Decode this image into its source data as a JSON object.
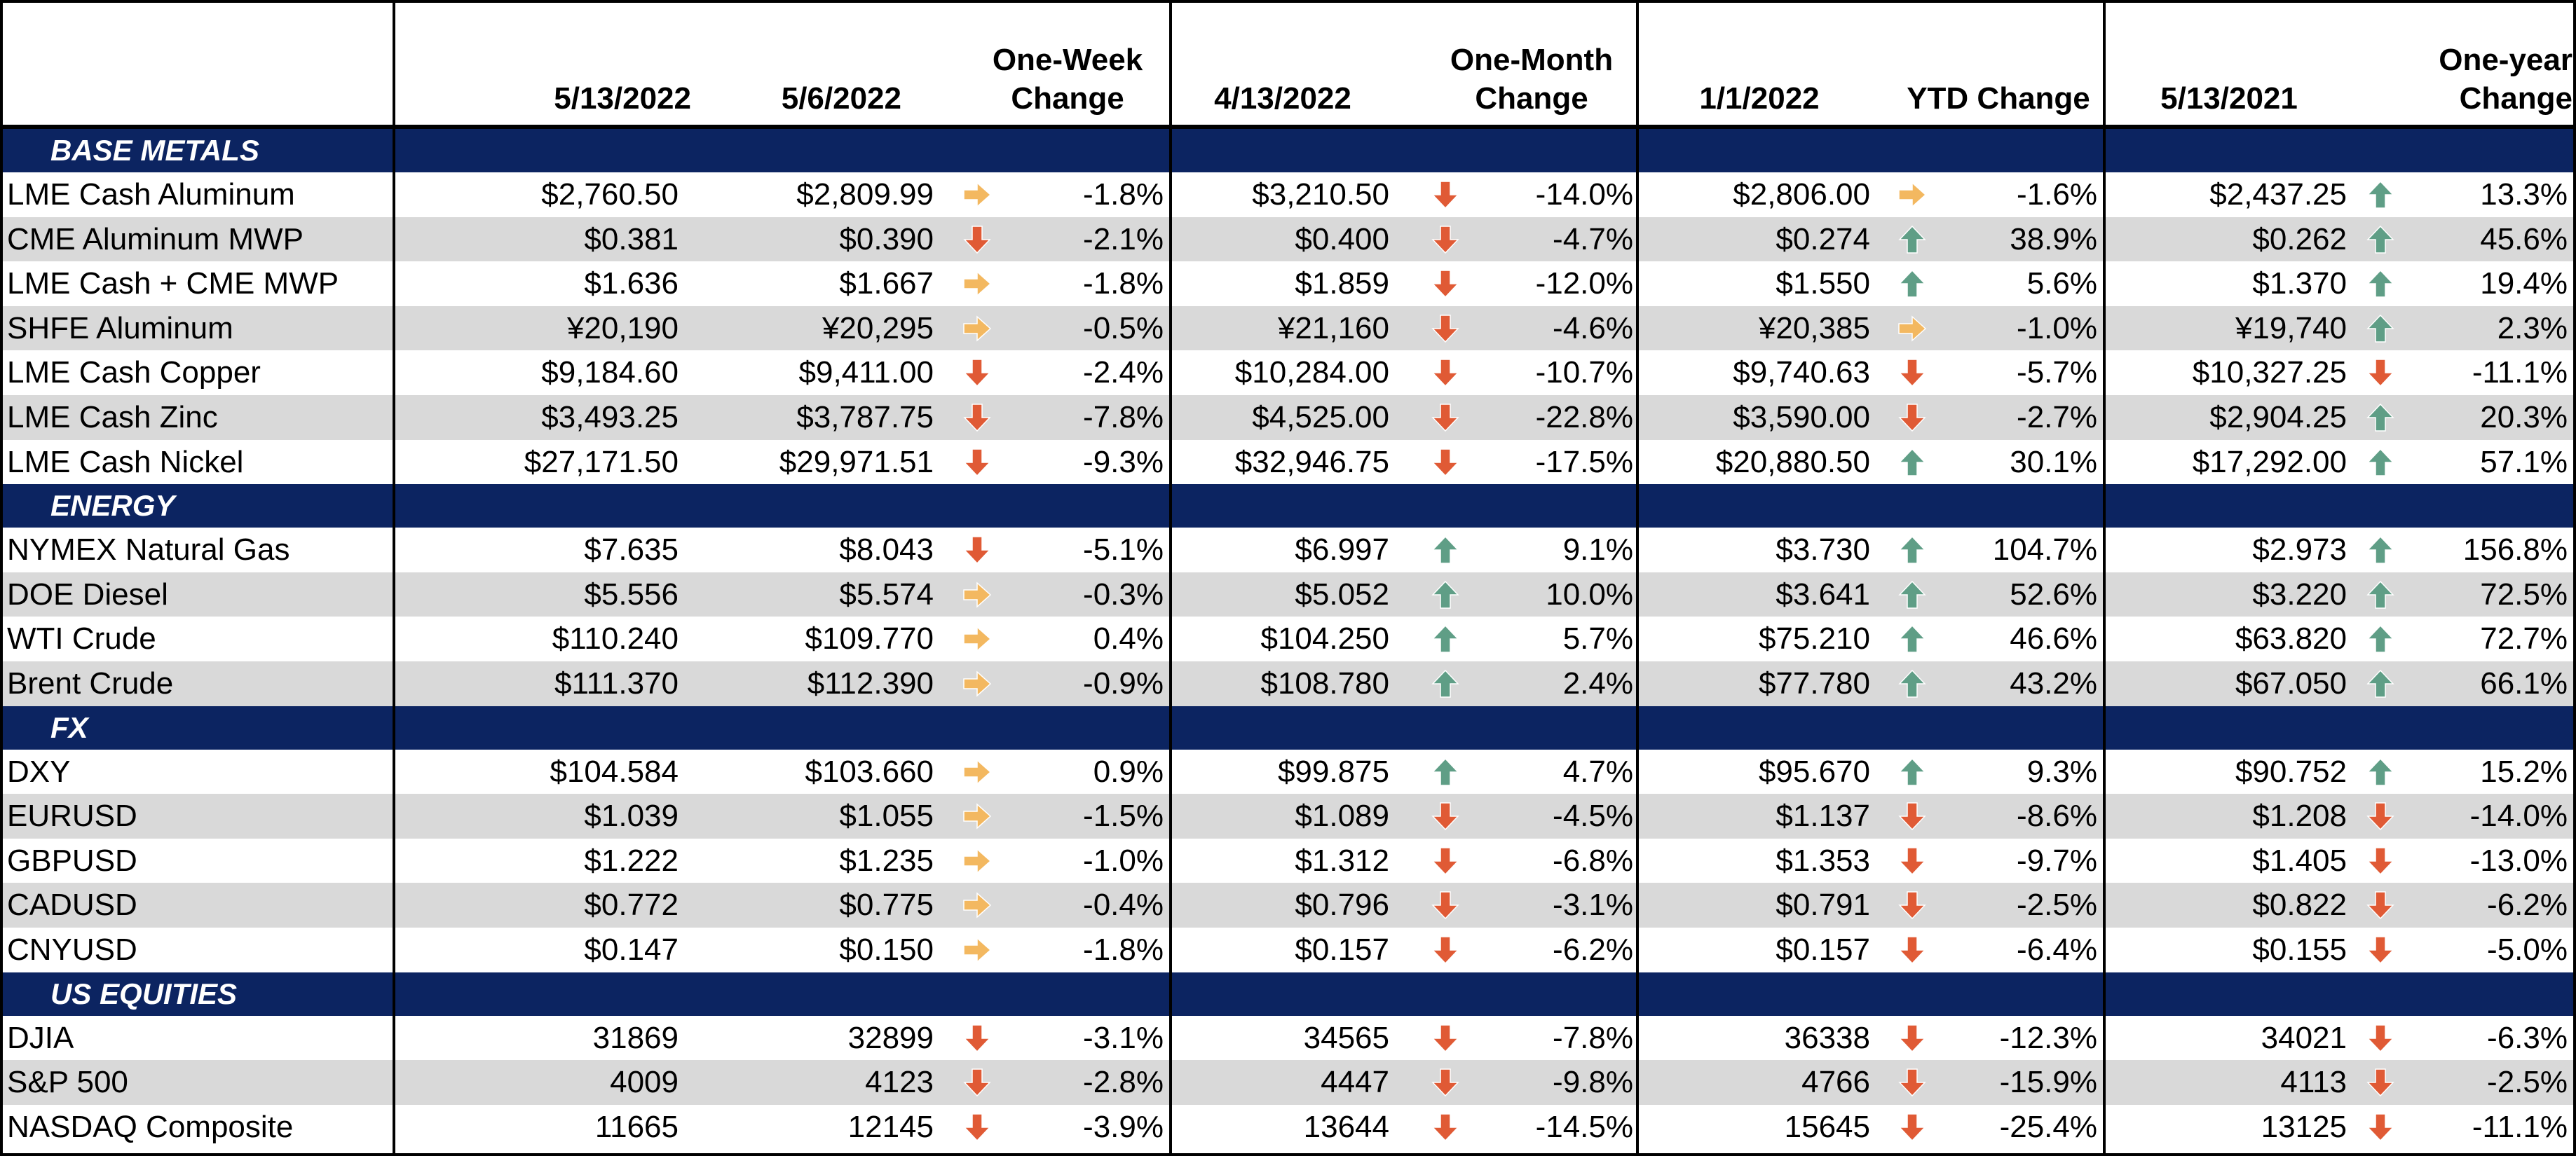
{
  "header": {
    "groups": [
      {
        "date_a": "5/13/2022",
        "date_b": "5/6/2022",
        "change": [
          "One-Week",
          "Change"
        ]
      },
      {
        "date": "4/13/2022",
        "change": [
          "One-Month",
          "Change"
        ]
      },
      {
        "date": "1/1/2022",
        "change": [
          "YTD Change"
        ]
      },
      {
        "date": "5/13/2021",
        "change": [
          "One-year",
          "Change"
        ]
      }
    ]
  },
  "colors": {
    "navy_band": "#0c2461",
    "stripe": "#d9d9d9",
    "arrow_up": "#5f9e86",
    "arrow_down": "#e05a35",
    "arrow_flat": "#f3b860"
  },
  "sections": [
    {
      "title": "BASE METALS",
      "rows": [
        {
          "label": "LME Cash Aluminum",
          "v1": "$2,760.50",
          "v2": "$2,809.99",
          "a1": "flat",
          "c1": "-1.8%",
          "v3": "$3,210.50",
          "a2": "down",
          "c2": "-14.0%",
          "v4": "$2,806.00",
          "a3": "flat",
          "c3": "-1.6%",
          "v5": "$2,437.25",
          "a4": "up",
          "c4": "13.3%"
        },
        {
          "label": "CME Aluminum MWP",
          "v1": "$0.381",
          "v2": "$0.390",
          "a1": "down",
          "c1": "-2.1%",
          "v3": "$0.400",
          "a2": "down",
          "c2": "-4.7%",
          "v4": "$0.274",
          "a3": "up",
          "c3": "38.9%",
          "v5": "$0.262",
          "a4": "up",
          "c4": "45.6%"
        },
        {
          "label": "LME Cash + CME MWP",
          "v1": "$1.636",
          "v2": "$1.667",
          "a1": "flat",
          "c1": "-1.8%",
          "v3": "$1.859",
          "a2": "down",
          "c2": "-12.0%",
          "v4": "$1.550",
          "a3": "up",
          "c3": "5.6%",
          "v5": "$1.370",
          "a4": "up",
          "c4": "19.4%"
        },
        {
          "label": "SHFE Aluminum",
          "v1": "¥20,190",
          "v2": "¥20,295",
          "a1": "flat",
          "c1": "-0.5%",
          "v3": "¥21,160",
          "a2": "down",
          "c2": "-4.6%",
          "v4": "¥20,385",
          "a3": "flat",
          "c3": "-1.0%",
          "v5": "¥19,740",
          "a4": "up",
          "c4": "2.3%"
        },
        {
          "label": "LME Cash Copper",
          "v1": "$9,184.60",
          "v2": "$9,411.00",
          "a1": "down",
          "c1": "-2.4%",
          "v3": "$10,284.00",
          "a2": "down",
          "c2": "-10.7%",
          "v4": "$9,740.63",
          "a3": "down",
          "c3": "-5.7%",
          "v5": "$10,327.25",
          "a4": "down",
          "c4": "-11.1%"
        },
        {
          "label": "LME Cash Zinc",
          "v1": "$3,493.25",
          "v2": "$3,787.75",
          "a1": "down",
          "c1": "-7.8%",
          "v3": "$4,525.00",
          "a2": "down",
          "c2": "-22.8%",
          "v4": "$3,590.00",
          "a3": "down",
          "c3": "-2.7%",
          "v5": "$2,904.25",
          "a4": "up",
          "c4": "20.3%"
        },
        {
          "label": "LME Cash Nickel",
          "v1": "$27,171.50",
          "v2": "$29,971.51",
          "a1": "down",
          "c1": "-9.3%",
          "v3": "$32,946.75",
          "a2": "down",
          "c2": "-17.5%",
          "v4": "$20,880.50",
          "a3": "up",
          "c3": "30.1%",
          "v5": "$17,292.00",
          "a4": "up",
          "c4": "57.1%"
        }
      ]
    },
    {
      "title": "ENERGY",
      "rows": [
        {
          "label": "NYMEX Natural Gas",
          "v1": "$7.635",
          "v2": "$8.043",
          "a1": "down",
          "c1": "-5.1%",
          "v3": "$6.997",
          "a2": "up",
          "c2": "9.1%",
          "v4": "$3.730",
          "a3": "up",
          "c3": "104.7%",
          "v5": "$2.973",
          "a4": "up",
          "c4": "156.8%"
        },
        {
          "label": "DOE Diesel",
          "v1": "$5.556",
          "v2": "$5.574",
          "a1": "flat",
          "c1": "-0.3%",
          "v3": "$5.052",
          "a2": "up",
          "c2": "10.0%",
          "v4": "$3.641",
          "a3": "up",
          "c3": "52.6%",
          "v5": "$3.220",
          "a4": "up",
          "c4": "72.5%"
        },
        {
          "label": "WTI Crude",
          "v1": "$110.240",
          "v2": "$109.770",
          "a1": "flat",
          "c1": "0.4%",
          "v3": "$104.250",
          "a2": "up",
          "c2": "5.7%",
          "v4": "$75.210",
          "a3": "up",
          "c3": "46.6%",
          "v5": "$63.820",
          "a4": "up",
          "c4": "72.7%"
        },
        {
          "label": "Brent Crude",
          "v1": "$111.370",
          "v2": "$112.390",
          "a1": "flat",
          "c1": "-0.9%",
          "v3": "$108.780",
          "a2": "up",
          "c2": "2.4%",
          "v4": "$77.780",
          "a3": "up",
          "c3": "43.2%",
          "v5": "$67.050",
          "a4": "up",
          "c4": "66.1%"
        }
      ]
    },
    {
      "title": "FX",
      "rows": [
        {
          "label": "DXY",
          "v1": "$104.584",
          "v2": "$103.660",
          "a1": "flat",
          "c1": "0.9%",
          "v3": "$99.875",
          "a2": "up",
          "c2": "4.7%",
          "v4": "$95.670",
          "a3": "up",
          "c3": "9.3%",
          "v5": "$90.752",
          "a4": "up",
          "c4": "15.2%"
        },
        {
          "label": "EURUSD",
          "v1": "$1.039",
          "v2": "$1.055",
          "a1": "flat",
          "c1": "-1.5%",
          "v3": "$1.089",
          "a2": "down",
          "c2": "-4.5%",
          "v4": "$1.137",
          "a3": "down",
          "c3": "-8.6%",
          "v5": "$1.208",
          "a4": "down",
          "c4": "-14.0%"
        },
        {
          "label": "GBPUSD",
          "v1": "$1.222",
          "v2": "$1.235",
          "a1": "flat",
          "c1": "-1.0%",
          "v3": "$1.312",
          "a2": "down",
          "c2": "-6.8%",
          "v4": "$1.353",
          "a3": "down",
          "c3": "-9.7%",
          "v5": "$1.405",
          "a4": "down",
          "c4": "-13.0%"
        },
        {
          "label": "CADUSD",
          "v1": "$0.772",
          "v2": "$0.775",
          "a1": "flat",
          "c1": "-0.4%",
          "v3": "$0.796",
          "a2": "down",
          "c2": "-3.1%",
          "v4": "$0.791",
          "a3": "down",
          "c3": "-2.5%",
          "v5": "$0.822",
          "a4": "down",
          "c4": "-6.2%"
        },
        {
          "label": "CNYUSD",
          "v1": "$0.147",
          "v2": "$0.150",
          "a1": "flat",
          "c1": "-1.8%",
          "v3": "$0.157",
          "a2": "down",
          "c2": "-6.2%",
          "v4": "$0.157",
          "a3": "down",
          "c3": "-6.4%",
          "v5": "$0.155",
          "a4": "down",
          "c4": "-5.0%"
        }
      ]
    },
    {
      "title": "US EQUITIES",
      "rows": [
        {
          "label": "DJIA",
          "v1": "31869",
          "v2": "32899",
          "a1": "down",
          "c1": "-3.1%",
          "v3": "34565",
          "a2": "down",
          "c2": "-7.8%",
          "v4": "36338",
          "a3": "down",
          "c3": "-12.3%",
          "v5": "34021",
          "a4": "down",
          "c4": "-6.3%"
        },
        {
          "label": "S&P 500",
          "v1": "4009",
          "v2": "4123",
          "a1": "down",
          "c1": "-2.8%",
          "v3": "4447",
          "a2": "down",
          "c2": "-9.8%",
          "v4": "4766",
          "a3": "down",
          "c3": "-15.9%",
          "v5": "4113",
          "a4": "down",
          "c4": "-2.5%"
        },
        {
          "label": "NASDAQ Composite",
          "v1": "11665",
          "v2": "12145",
          "a1": "down",
          "c1": "-3.9%",
          "v3": "13644",
          "a2": "down",
          "c2": "-14.5%",
          "v4": "15645",
          "a3": "down",
          "c3": "-25.4%",
          "v5": "13125",
          "a4": "down",
          "c4": "-11.1%"
        }
      ]
    }
  ]
}
